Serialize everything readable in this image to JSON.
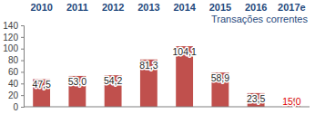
{
  "chart_data": {
    "type": "bar",
    "title": "Transações correntes",
    "categories": [
      "2010",
      "2011",
      "2012",
      "2013",
      "2014",
      "2015",
      "2016",
      "2017e"
    ],
    "values": [
      47.5,
      53.0,
      54.2,
      81.3,
      104.1,
      58.9,
      23.5,
      15.0
    ],
    "value_labels": [
      "47,5",
      "53,0",
      "54,2",
      "81,3",
      "104,1",
      "58,9",
      "23,5",
      "15,0"
    ],
    "color": "#c0504d",
    "ylim": [
      0,
      140
    ],
    "yticks": [
      0,
      20,
      40,
      60,
      80,
      100,
      120,
      140
    ],
    "grid": false,
    "data_labels": true
  }
}
